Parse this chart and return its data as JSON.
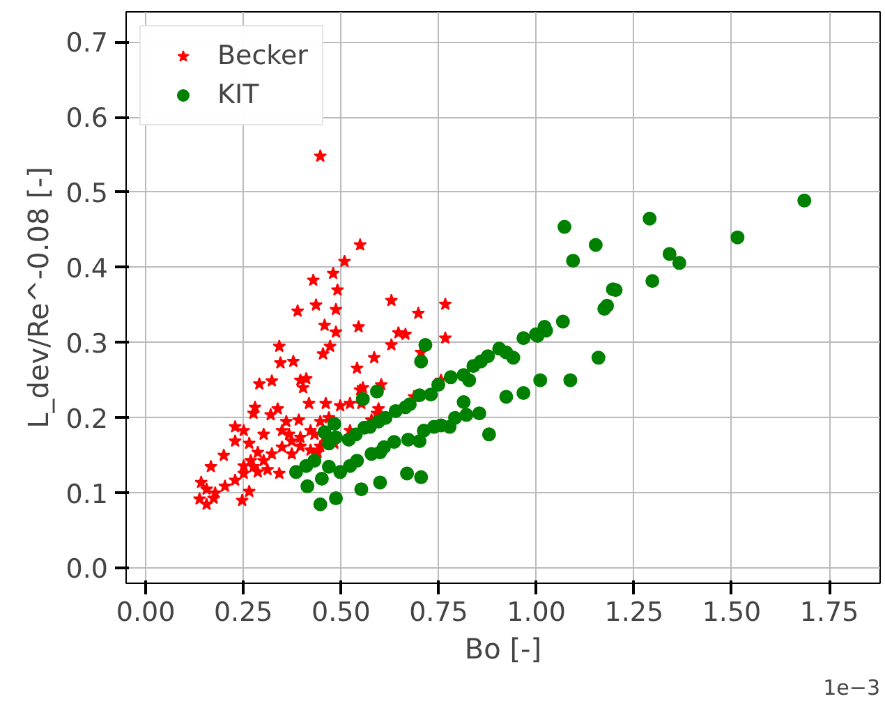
{
  "chart_data": {
    "type": "scatter",
    "xlabel": "Bo [-]",
    "ylabel": "L_dev/Re^-0.08 [-]",
    "annotations": [
      "1e−3"
    ],
    "xlim": [
      -0.05,
      1.88
    ],
    "ylim": [
      -0.02,
      0.74
    ],
    "xticks": [
      {
        "value": 0,
        "label": "0.00"
      },
      0.25,
      {
        "value": 0.5,
        "label": "0.50"
      },
      0.75,
      {
        "value": 1,
        "label": "1.00"
      },
      1.25,
      {
        "value": 1.5,
        "label": "1.50"
      },
      1.75
    ],
    "yticks": [
      {
        "value": 0,
        "label": "0.0"
      },
      0.1,
      0.2,
      0.3,
      0.4,
      0.5,
      0.6,
      0.7
    ],
    "grid": true,
    "legend": "top left",
    "series": [
      {
        "name": "Becker",
        "color": "#ff0000",
        "marker": "star",
        "x": [
          0.447,
          0.549,
          0.509,
          0.48,
          0.429,
          0.491,
          0.389,
          0.436,
          0.487,
          0.458,
          0.487,
          0.545,
          0.629,
          0.698,
          0.647,
          0.665,
          0.629,
          0.342,
          0.472,
          0.454,
          0.585,
          0.345,
          0.378,
          0.541,
          0.396,
          0.411,
          0.403,
          0.291,
          0.323,
          0.549,
          0.556,
          0.603,
          0.28,
          0.418,
          0.461,
          0.498,
          0.523,
          0.552,
          0.592,
          0.229,
          0.251,
          0.276,
          0.32,
          0.338,
          0.36,
          0.392,
          0.447,
          0.469,
          0.422,
          0.396,
          0.374,
          0.349,
          0.323,
          0.302,
          0.276,
          0.251,
          0.229,
          0.203,
          0.178,
          0.156,
          0.142,
          0.138,
          0.156,
          0.174,
          0.247,
          0.265,
          0.167,
          0.2,
          0.229,
          0.265,
          0.287,
          0.302,
          0.269,
          0.251,
          0.342,
          0.312,
          0.287,
          0.422,
          0.44,
          0.432,
          0.458,
          0.483,
          0.447,
          0.396,
          0.374,
          0.349,
          0.367,
          0.523,
          0.578,
          0.596,
          0.767,
          0.767,
          0.705,
          0.756,
          0.687
        ],
        "values": [
          0.548,
          0.43,
          0.408,
          0.392,
          0.383,
          0.37,
          0.342,
          0.35,
          0.344,
          0.323,
          0.314,
          0.321,
          0.356,
          0.339,
          0.313,
          0.311,
          0.297,
          0.295,
          0.295,
          0.285,
          0.28,
          0.273,
          0.275,
          0.266,
          0.25,
          0.252,
          0.24,
          0.245,
          0.249,
          0.237,
          0.24,
          0.244,
          0.214,
          0.219,
          0.219,
          0.216,
          0.219,
          0.219,
          0.206,
          0.188,
          0.183,
          0.206,
          0.204,
          0.212,
          0.195,
          0.197,
          0.195,
          0.2,
          0.183,
          0.174,
          0.169,
          0.161,
          0.152,
          0.143,
          0.135,
          0.126,
          0.117,
          0.109,
          0.1,
          0.105,
          0.114,
          0.092,
          0.085,
          0.093,
          0.09,
          0.102,
          0.135,
          0.15,
          0.169,
          0.166,
          0.154,
          0.178,
          0.143,
          0.136,
          0.126,
          0.131,
          0.128,
          0.157,
          0.154,
          0.178,
          0.174,
          0.166,
          0.162,
          0.162,
          0.152,
          0.183,
          0.178,
          0.183,
          0.197,
          0.212,
          0.306,
          0.351,
          0.287,
          0.25,
          0.228
        ]
      },
      {
        "name": "KIT",
        "color": "#008000",
        "marker": "circle",
        "x": [
          0.716,
          0.705,
          0.967,
          0.999,
          1.021,
          1.01,
          0.967,
          0.923,
          0.879,
          0.854,
          0.821,
          0.814,
          0.792,
          0.778,
          0.756,
          0.738,
          0.712,
          0.701,
          0.672,
          0.636,
          0.61,
          0.6,
          0.578,
          0.541,
          0.523,
          0.498,
          0.469,
          0.451,
          0.414,
          0.385,
          0.411,
          0.432,
          0.447,
          0.487,
          0.552,
          0.6,
          0.669,
          0.705,
          0.458,
          0.469,
          0.487,
          0.52,
          0.538,
          0.56,
          0.574,
          0.596,
          0.614,
          0.64,
          0.665,
          0.676,
          0.701,
          0.73,
          0.749,
          0.781,
          0.814,
          0.828,
          0.839,
          0.858,
          0.876,
          0.905,
          0.923,
          0.941,
          0.556,
          0.592,
          0.483,
          1.686,
          1.515,
          1.29,
          1.341,
          1.366,
          1.297,
          1.072,
          1.152,
          1.094,
          1.196,
          1.203,
          1.174,
          1.181,
          1.068,
          1.025,
          1.003,
          1.159,
          1.087
        ],
        "values": [
          0.297,
          0.275,
          0.306,
          0.311,
          0.321,
          0.25,
          0.233,
          0.228,
          0.178,
          0.206,
          0.204,
          0.221,
          0.2,
          0.188,
          0.19,
          0.188,
          0.183,
          0.169,
          0.171,
          0.168,
          0.161,
          0.154,
          0.152,
          0.143,
          0.136,
          0.128,
          0.135,
          0.119,
          0.109,
          0.128,
          0.136,
          0.143,
          0.085,
          0.093,
          0.105,
          0.114,
          0.126,
          0.121,
          0.181,
          0.166,
          0.174,
          0.171,
          0.178,
          0.187,
          0.188,
          0.195,
          0.2,
          0.209,
          0.214,
          0.218,
          0.23,
          0.231,
          0.244,
          0.254,
          0.257,
          0.25,
          0.269,
          0.275,
          0.282,
          0.292,
          0.287,
          0.28,
          0.225,
          0.235,
          0.192,
          0.489,
          0.44,
          0.465,
          0.418,
          0.406,
          0.382,
          0.454,
          0.43,
          0.409,
          0.371,
          0.37,
          0.345,
          0.349,
          0.328,
          0.316,
          0.309,
          0.28,
          0.25
        ]
      }
    ]
  }
}
